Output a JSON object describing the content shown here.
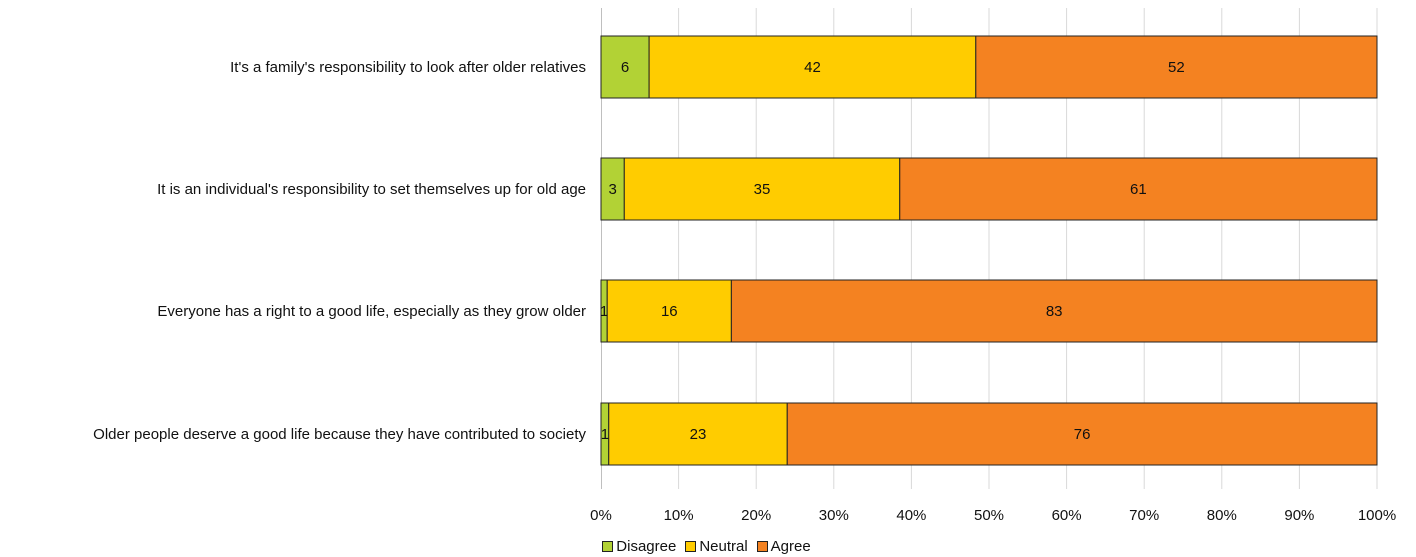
{
  "chart_data": {
    "type": "bar",
    "orientation": "horizontal",
    "stacked": "100%",
    "categories": [
      "It's a family's responsibility to look after older relatives",
      "It is an individual's responsibility to set themselves up for old age",
      "Everyone has a right to a good life, especially as they grow older",
      "Older people deserve a good life because they have contributed to society"
    ],
    "series": [
      {
        "name": "Disagree",
        "color": "#b2d235",
        "values": [
          6,
          3,
          1,
          1
        ],
        "plot_values": [
          6.2,
          3.0,
          0.8,
          1.0
        ]
      },
      {
        "name": "Neutral",
        "color": "#ffcc00",
        "values": [
          42,
          35,
          16,
          23
        ],
        "plot_values": [
          42.1,
          35.5,
          16.0,
          23.0
        ]
      },
      {
        "name": "Agree",
        "color": "#f48221",
        "values": [
          52,
          61,
          83,
          76
        ],
        "plot_values": [
          51.7,
          61.5,
          83.2,
          76.0
        ]
      }
    ],
    "xlim": [
      0,
      100
    ],
    "xticks": [
      "0%",
      "10%",
      "20%",
      "30%",
      "40%",
      "50%",
      "60%",
      "70%",
      "80%",
      "90%",
      "100%"
    ],
    "grid": true,
    "legend": "bottom-center",
    "title": "",
    "xlabel": "",
    "ylabel": ""
  }
}
